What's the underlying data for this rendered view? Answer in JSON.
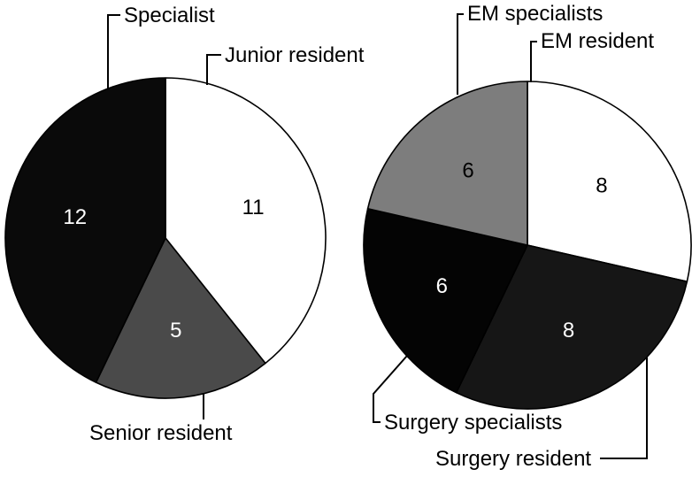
{
  "figure": {
    "background_color": "#ffffff",
    "outline_color": "#000000"
  },
  "chart_data": [
    {
      "type": "pie",
      "id": "left-pie",
      "start_angle": "top",
      "direction": "clockwise",
      "legend_position": "callout-labels",
      "slices": [
        {
          "label": "Junior resident",
          "value": 11,
          "color": "#ffffff",
          "value_text_color": "#000000"
        },
        {
          "label": "Senior resident",
          "value": 5,
          "color": "#4a4a4a",
          "value_text_color": "#ffffff"
        },
        {
          "label": "Specialist",
          "value": 12,
          "color": "#0a0a0a",
          "value_text_color": "#ffffff"
        }
      ]
    },
    {
      "type": "pie",
      "id": "right-pie",
      "start_angle": "top",
      "direction": "clockwise",
      "legend_position": "callout-labels",
      "slices": [
        {
          "label": "EM resident",
          "value": 8,
          "color": "#ffffff",
          "value_text_color": "#000000"
        },
        {
          "label": "Surgery resident",
          "value": 8,
          "color": "#161616",
          "value_text_color": "#ffffff"
        },
        {
          "label": "Surgery specialists",
          "value": 6,
          "color": "#040404",
          "value_text_color": "#ffffff"
        },
        {
          "label": "EM specialists",
          "value": 6,
          "color": "#7d7d7d",
          "value_text_color": "#000000"
        }
      ]
    }
  ]
}
